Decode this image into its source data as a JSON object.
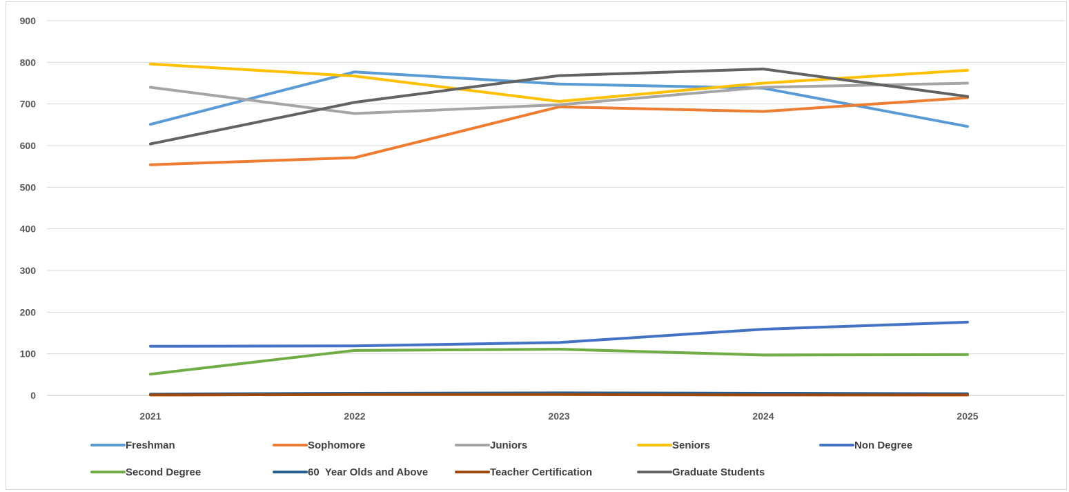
{
  "chart_data": {
    "type": "line",
    "title": "",
    "xlabel": "",
    "ylabel": "",
    "categories": [
      "2021",
      "2022",
      "2023",
      "2024",
      "2025"
    ],
    "ylim": [
      0,
      900
    ],
    "yticks": [
      0,
      100,
      200,
      300,
      400,
      500,
      600,
      700,
      800,
      900
    ],
    "grid": "horizontal",
    "legend_position": "bottom",
    "series": [
      {
        "name": "Freshman",
        "color": "#5B9BD5",
        "values": [
          651,
          777,
          748,
          738,
          646
        ]
      },
      {
        "name": "Sophomore",
        "color": "#ED7D31",
        "values": [
          554,
          571,
          693,
          682,
          715
        ]
      },
      {
        "name": "Juniors",
        "color": "#A5A5A5",
        "values": [
          740,
          677,
          698,
          740,
          750
        ]
      },
      {
        "name": "Seniors",
        "color": "#FFC000",
        "values": [
          796,
          767,
          706,
          750,
          781
        ]
      },
      {
        "name": "Non Degree",
        "color": "#4472C4",
        "values": [
          118,
          119,
          127,
          159,
          176
        ]
      },
      {
        "name": "Second Degree",
        "color": "#70AD47",
        "values": [
          51,
          108,
          111,
          97,
          98
        ]
      },
      {
        "name": "60  Year Olds and Above",
        "color": "#255E91",
        "values": [
          3,
          5,
          6,
          5,
          4
        ]
      },
      {
        "name": "Teacher Certification",
        "color": "#9E480E",
        "values": [
          1,
          2,
          2,
          1,
          1
        ]
      },
      {
        "name": "Graduate Students",
        "color": "#636363",
        "values": [
          604,
          704,
          768,
          784,
          718
        ]
      }
    ]
  }
}
